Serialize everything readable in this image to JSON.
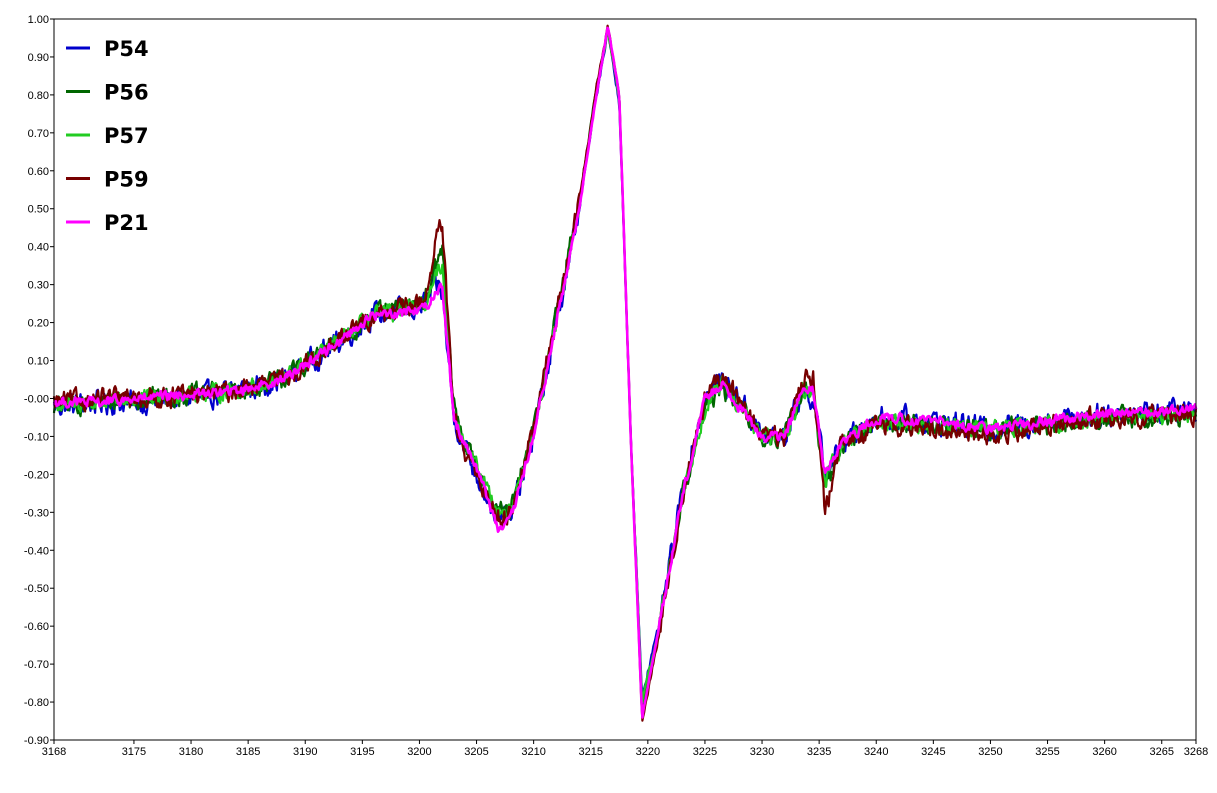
{
  "chart_data": {
    "type": "line",
    "title": "",
    "xlabel": "",
    "ylabel": "",
    "xlim": [
      3168,
      3268
    ],
    "ylim": [
      -0.9,
      1.0
    ],
    "grid": false,
    "legend_position": "top-left",
    "x_ticks": [
      3168,
      3175,
      3180,
      3185,
      3190,
      3195,
      3200,
      3205,
      3210,
      3215,
      3220,
      3225,
      3230,
      3235,
      3240,
      3245,
      3250,
      3255,
      3260,
      3265,
      3268
    ],
    "y_ticks": [
      1.0,
      0.9,
      0.8,
      0.7,
      0.6,
      0.5,
      0.4,
      0.3,
      0.2,
      0.1,
      0.0,
      -0.1,
      -0.2,
      -0.3,
      -0.4,
      -0.5,
      -0.6,
      -0.7,
      -0.8,
      -0.9
    ],
    "y_tick_labels": [
      "1.00",
      "0.90",
      "0.80",
      "0.70",
      "0.60",
      "0.50",
      "0.40",
      "0.30",
      "0.20",
      "0.10",
      "-0.00",
      "-0.10",
      "-0.20",
      "-0.30",
      "-0.40",
      "-0.50",
      "-0.60",
      "-0.70",
      "-0.80",
      "-0.90"
    ],
    "base_x": [
      3168,
      3172,
      3176,
      3180,
      3184,
      3188,
      3192,
      3196,
      3199,
      3200.5,
      3201.5,
      3202,
      3203,
      3204,
      3205,
      3207,
      3208,
      3210,
      3212,
      3214,
      3215.5,
      3216.5,
      3217.5,
      3218.5,
      3219.5,
      3221,
      3223,
      3225,
      3226.5,
      3228,
      3230,
      3232,
      3233.5,
      3234.5,
      3235.5,
      3237,
      3240,
      3245,
      3250,
      3255,
      3260,
      3268
    ],
    "series": [
      {
        "name": "P54",
        "color": "#0000cc",
        "values": [
          -0.02,
          -0.01,
          -0.01,
          0.0,
          0.02,
          0.05,
          0.13,
          0.22,
          0.23,
          0.25,
          0.3,
          0.28,
          -0.05,
          -0.13,
          -0.2,
          -0.32,
          -0.31,
          -0.1,
          0.2,
          0.5,
          0.8,
          0.97,
          0.78,
          -0.1,
          -0.78,
          -0.6,
          -0.25,
          0.0,
          0.05,
          0.0,
          -0.1,
          -0.1,
          0.02,
          0.0,
          -0.2,
          -0.12,
          -0.05,
          -0.06,
          -0.08,
          -0.06,
          -0.04,
          -0.03
        ],
        "noise": 0.035
      },
      {
        "name": "P56",
        "color": "#006600",
        "values": [
          -0.02,
          -0.01,
          0.0,
          0.01,
          0.02,
          0.05,
          0.13,
          0.22,
          0.24,
          0.26,
          0.35,
          0.4,
          -0.02,
          -0.12,
          -0.18,
          -0.3,
          -0.3,
          -0.08,
          0.22,
          0.52,
          0.82,
          0.97,
          0.8,
          -0.1,
          -0.82,
          -0.6,
          -0.26,
          -0.02,
          0.03,
          -0.02,
          -0.1,
          -0.1,
          0.02,
          0.02,
          -0.25,
          -0.12,
          -0.06,
          -0.07,
          -0.08,
          -0.07,
          -0.05,
          -0.05
        ],
        "noise": 0.03
      },
      {
        "name": "P57",
        "color": "#22cc22",
        "values": [
          -0.02,
          -0.01,
          0.0,
          0.01,
          0.02,
          0.05,
          0.13,
          0.22,
          0.23,
          0.25,
          0.32,
          0.36,
          -0.03,
          -0.12,
          -0.18,
          -0.3,
          -0.3,
          -0.09,
          0.21,
          0.51,
          0.8,
          0.97,
          0.79,
          -0.1,
          -0.8,
          -0.6,
          -0.26,
          -0.02,
          0.04,
          -0.02,
          -0.1,
          -0.1,
          0.02,
          0.02,
          -0.22,
          -0.12,
          -0.06,
          -0.07,
          -0.08,
          -0.07,
          -0.05,
          -0.04
        ],
        "noise": 0.025
      },
      {
        "name": "P59",
        "color": "#770000",
        "values": [
          -0.01,
          0.0,
          0.0,
          0.01,
          0.02,
          0.05,
          0.13,
          0.22,
          0.24,
          0.26,
          0.42,
          0.46,
          -0.05,
          -0.15,
          -0.2,
          -0.32,
          -0.3,
          -0.08,
          0.22,
          0.52,
          0.82,
          0.98,
          0.8,
          -0.1,
          -0.85,
          -0.62,
          -0.26,
          0.0,
          0.05,
          0.0,
          -0.1,
          -0.1,
          0.05,
          0.06,
          -0.3,
          -0.12,
          -0.07,
          -0.08,
          -0.1,
          -0.07,
          -0.05,
          -0.04
        ],
        "noise": 0.03
      },
      {
        "name": "P21",
        "color": "#ff00ff",
        "values": [
          -0.01,
          -0.01,
          0.0,
          0.01,
          0.02,
          0.05,
          0.13,
          0.22,
          0.23,
          0.24,
          0.28,
          0.3,
          -0.05,
          -0.12,
          -0.18,
          -0.35,
          -0.32,
          -0.1,
          0.2,
          0.5,
          0.8,
          0.98,
          0.8,
          -0.1,
          -0.84,
          -0.6,
          -0.26,
          0.0,
          0.04,
          -0.02,
          -0.1,
          -0.1,
          0.02,
          0.02,
          -0.2,
          -0.12,
          -0.05,
          -0.06,
          -0.08,
          -0.06,
          -0.04,
          -0.03
        ],
        "noise": 0.015
      }
    ]
  }
}
